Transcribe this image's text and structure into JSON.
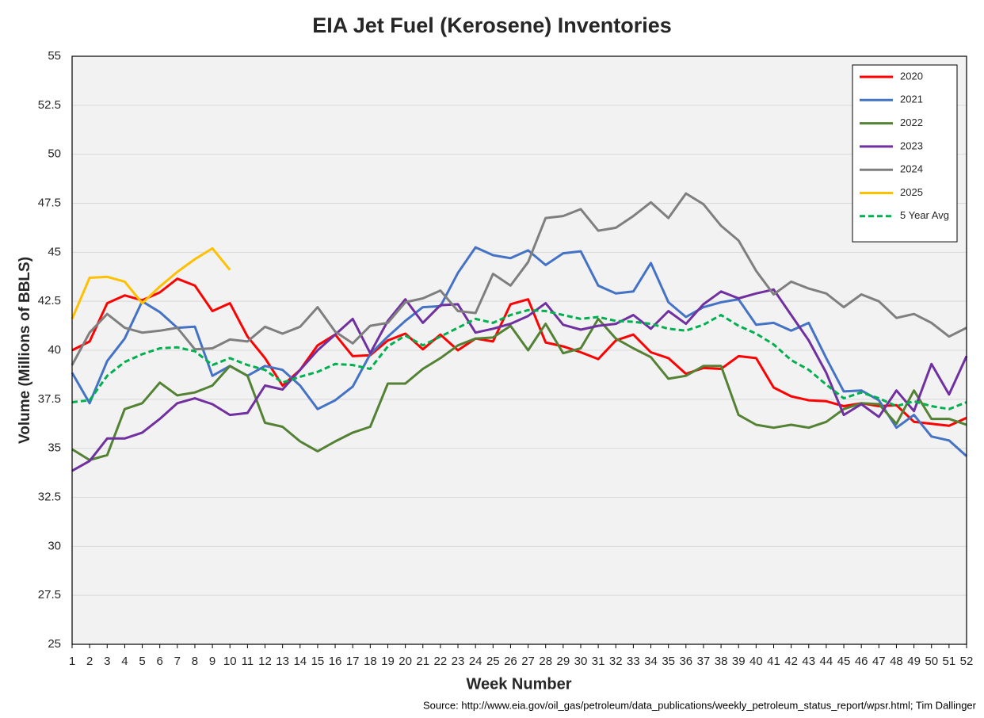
{
  "chart_data": {
    "type": "line",
    "title": "EIA Jet Fuel (Kerosene) Inventories",
    "xlabel": "Week Number",
    "ylabel": "Volume (Millions of BBLS)",
    "source": "Source: http://www.eia.gov/oil_gas/petroleum/data_publications/weekly_petroleum_status_report/wpsr.html; Tim Dallinger",
    "x": [
      1,
      2,
      3,
      4,
      5,
      6,
      7,
      8,
      9,
      10,
      11,
      12,
      13,
      14,
      15,
      16,
      17,
      18,
      19,
      20,
      21,
      22,
      23,
      24,
      25,
      26,
      27,
      28,
      29,
      30,
      31,
      32,
      33,
      34,
      35,
      36,
      37,
      38,
      39,
      40,
      41,
      42,
      43,
      44,
      45,
      46,
      47,
      48,
      49,
      50,
      51,
      52
    ],
    "xlim": [
      1,
      52
    ],
    "ylim": [
      25,
      55
    ],
    "yticks": [
      25,
      27.5,
      30,
      32.5,
      35,
      37.5,
      40,
      42.5,
      45,
      47.5,
      50,
      52.5,
      55
    ],
    "grid": true,
    "legend": "upper right",
    "series": [
      {
        "name": "2020",
        "color": "#ff0000",
        "linestyle": "solid",
        "values": [
          40.0,
          40.45,
          42.4,
          42.8,
          42.55,
          42.95,
          43.65,
          43.3,
          42.0,
          42.4,
          40.7,
          39.6,
          38.2,
          39.0,
          40.25,
          40.8,
          39.7,
          39.75,
          40.5,
          40.85,
          40.05,
          40.8,
          40.0,
          40.6,
          40.45,
          42.35,
          42.6,
          40.4,
          40.2,
          39.9,
          39.55,
          40.5,
          40.8,
          39.9,
          39.6,
          38.8,
          39.1,
          39.05,
          39.7,
          39.6,
          38.1,
          37.65,
          37.45,
          37.4,
          37.15,
          37.3,
          37.15,
          37.2,
          36.35,
          36.25,
          36.15,
          36.55
        ]
      },
      {
        "name": "2021",
        "color": "#4472c4",
        "linestyle": "solid",
        "values": [
          38.85,
          37.3,
          39.45,
          40.6,
          42.5,
          41.95,
          41.15,
          41.2,
          38.7,
          39.2,
          38.7,
          39.2,
          39.0,
          38.2,
          37.0,
          37.45,
          38.15,
          39.8,
          40.7,
          41.5,
          42.2,
          42.25,
          43.95,
          45.25,
          44.85,
          44.7,
          45.1,
          44.35,
          44.95,
          45.05,
          43.3,
          42.9,
          43.0,
          44.45,
          42.45,
          41.7,
          42.2,
          42.45,
          42.6,
          41.3,
          41.4,
          41.0,
          41.4,
          39.6,
          37.9,
          37.95,
          37.45,
          36.05,
          36.7,
          35.6,
          35.4,
          34.6
        ]
      },
      {
        "name": "2022",
        "color": "#548235",
        "linestyle": "solid",
        "values": [
          34.95,
          34.4,
          34.65,
          37.0,
          37.3,
          38.35,
          37.7,
          37.85,
          38.2,
          39.2,
          38.7,
          36.3,
          36.1,
          35.35,
          34.85,
          35.35,
          35.8,
          36.1,
          38.3,
          38.3,
          39.05,
          39.6,
          40.25,
          40.6,
          40.65,
          41.25,
          40.0,
          41.35,
          39.85,
          40.1,
          41.6,
          40.6,
          40.1,
          39.65,
          38.55,
          38.7,
          39.2,
          39.2,
          36.7,
          36.2,
          36.05,
          36.2,
          36.05,
          36.35,
          37.0,
          37.3,
          37.25,
          36.25,
          37.95,
          36.5,
          36.5,
          36.2
        ]
      },
      {
        "name": "2023",
        "color": "#7030a0",
        "linestyle": "solid",
        "values": [
          33.85,
          34.35,
          35.5,
          35.5,
          35.8,
          36.5,
          37.3,
          37.55,
          37.25,
          36.7,
          36.8,
          38.2,
          38.0,
          39.0,
          40.0,
          40.8,
          41.6,
          39.85,
          41.5,
          42.6,
          41.4,
          42.3,
          42.35,
          40.9,
          41.1,
          41.35,
          41.75,
          42.4,
          41.3,
          41.05,
          41.25,
          41.35,
          41.8,
          41.1,
          42.0,
          41.35,
          42.35,
          43.0,
          42.65,
          42.9,
          43.1,
          41.8,
          40.5,
          38.85,
          36.7,
          37.25,
          36.6,
          37.95,
          36.9,
          39.3,
          37.75,
          39.7
        ]
      },
      {
        "name": "2024",
        "color": "#7f7f7f",
        "linestyle": "solid",
        "values": [
          39.25,
          40.9,
          41.85,
          41.15,
          40.9,
          41.0,
          41.15,
          40.05,
          40.1,
          40.55,
          40.45,
          41.2,
          40.85,
          41.2,
          42.2,
          40.95,
          40.35,
          41.25,
          41.4,
          42.45,
          42.65,
          43.05,
          42.0,
          41.9,
          43.9,
          43.3,
          44.5,
          46.75,
          46.85,
          47.2,
          46.1,
          46.25,
          46.85,
          47.55,
          46.75,
          48.0,
          47.45,
          46.35,
          45.6,
          44.05,
          42.85,
          43.5,
          43.15,
          42.9,
          42.2,
          42.85,
          42.5,
          41.65,
          41.85,
          41.4,
          40.7,
          41.15
        ]
      },
      {
        "name": "2025",
        "color": "#ffc000",
        "linestyle": "solid",
        "values": [
          41.6,
          43.7,
          43.75,
          43.5,
          42.4,
          43.25,
          44.0,
          44.65,
          45.2,
          44.1,
          null,
          null,
          null,
          null,
          null,
          null,
          null,
          null,
          null,
          null,
          null,
          null,
          null,
          null,
          null,
          null,
          null,
          null,
          null,
          null,
          null,
          null,
          null,
          null,
          null,
          null,
          null,
          null,
          null,
          null,
          null,
          null,
          null,
          null,
          null,
          null,
          null,
          null,
          null,
          null,
          null,
          null
        ]
      },
      {
        "name": "5 Year Avg",
        "color": "#00b050",
        "linestyle": "dashed",
        "values": [
          37.35,
          37.45,
          38.7,
          39.4,
          39.8,
          40.1,
          40.15,
          39.95,
          39.25,
          39.6,
          39.25,
          39.0,
          38.35,
          38.65,
          38.9,
          39.3,
          39.25,
          39.05,
          40.2,
          40.75,
          40.25,
          40.7,
          41.15,
          41.6,
          41.4,
          41.8,
          42.05,
          42.0,
          41.8,
          41.6,
          41.7,
          41.5,
          41.45,
          41.35,
          41.1,
          41.0,
          41.3,
          41.8,
          41.25,
          40.85,
          40.3,
          39.5,
          39.0,
          38.25,
          37.55,
          37.85,
          37.55,
          37.15,
          37.4,
          37.15,
          37.0,
          37.35
        ]
      }
    ]
  }
}
